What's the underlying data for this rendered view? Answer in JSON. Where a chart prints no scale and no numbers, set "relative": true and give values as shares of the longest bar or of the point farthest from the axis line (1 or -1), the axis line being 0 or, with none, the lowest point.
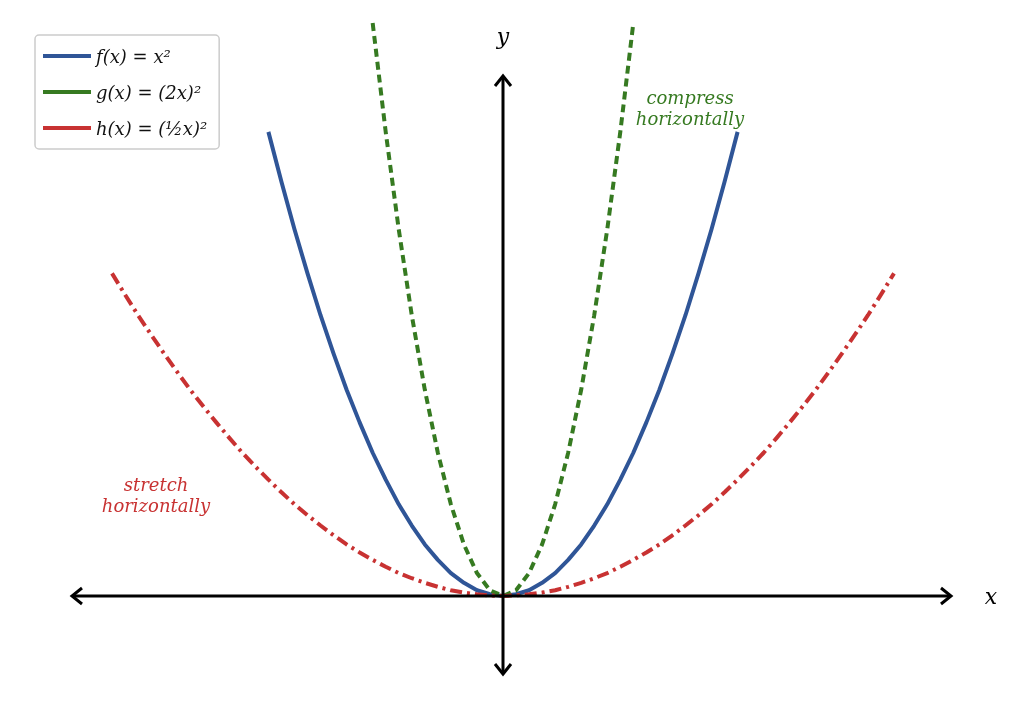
{
  "chart_data": {
    "type": "line",
    "relative": true,
    "xlabel": "x",
    "ylabel": "y",
    "legend": "top left",
    "grid": false,
    "marker": "none",
    "categories": [
      null,
      null,
      null,
      null,
      null,
      null,
      null,
      null,
      null,
      null,
      null,
      null,
      null,
      null,
      null,
      null,
      null,
      null,
      null,
      null,
      null,
      null,
      null,
      null,
      null,
      null,
      null,
      null,
      null,
      null,
      null,
      null,
      null,
      null,
      null,
      null,
      null,
      null,
      null,
      null,
      null,
      null,
      null,
      null,
      null,
      null,
      null,
      null,
      null,
      null,
      null,
      null,
      null,
      null,
      null,
      null,
      null,
      null,
      null,
      null,
      null
    ],
    "series": [
      {
        "name": "f(x) = x²",
        "color": "#2f5597",
        "line_style": "solid",
        "values": [
          null,
          null,
          null,
          null,
          null,
          null,
          null,
          null,
          null,
          null,
          null,
          null,
          0.81,
          0.723,
          0.64,
          0.563,
          0.49,
          0.423,
          0.36,
          0.303,
          0.25,
          0.203,
          0.16,
          0.123,
          0.09,
          0.063,
          0.04,
          0.023,
          0.01,
          0.003,
          0,
          0.003,
          0.01,
          0.023,
          0.04,
          0.063,
          0.09,
          0.123,
          0.16,
          0.203,
          0.25,
          0.303,
          0.36,
          0.423,
          0.49,
          0.563,
          0.64,
          0.723,
          0.81,
          null,
          null,
          null,
          null,
          null,
          null,
          null,
          null,
          null,
          null,
          null,
          null
        ]
      },
      {
        "name": "g(x) = (2x)²",
        "color": "#367a21",
        "line_style": "dashed",
        "values": [
          null,
          null,
          null,
          null,
          null,
          null,
          null,
          null,
          null,
          null,
          null,
          null,
          null,
          null,
          null,
          null,
          null,
          null,
          null,
          null,
          1,
          0.81,
          0.64,
          0.49,
          0.36,
          0.25,
          0.16,
          0.09,
          0.04,
          0.01,
          0,
          0.01,
          0.04,
          0.09,
          0.16,
          0.25,
          0.36,
          0.49,
          0.64,
          0.81,
          1,
          null,
          null,
          null,
          null,
          null,
          null,
          null,
          null,
          null,
          null,
          null,
          null,
          null,
          null,
          null,
          null,
          null,
          null,
          null,
          null
        ]
      },
      {
        "name": "h(x) = (½x)²",
        "color": "#c83232",
        "line_style": "dashdot",
        "values": [
          0.563,
          0.526,
          0.49,
          0.456,
          0.423,
          0.391,
          0.36,
          0.331,
          0.303,
          0.276,
          0.25,
          0.226,
          0.203,
          0.181,
          0.16,
          0.141,
          0.123,
          0.106,
          0.09,
          0.076,
          0.063,
          0.051,
          0.04,
          0.031,
          0.023,
          0.016,
          0.01,
          0.006,
          0.003,
          0.001,
          0,
          0.001,
          0.003,
          0.006,
          0.01,
          0.016,
          0.023,
          0.031,
          0.04,
          0.051,
          0.063,
          0.076,
          0.09,
          0.106,
          0.123,
          0.141,
          0.16,
          0.181,
          0.203,
          0.226,
          0.25,
          0.276,
          0.303,
          0.331,
          0.36,
          0.391,
          0.423,
          0.456,
          0.49,
          0.526,
          0.563
        ]
      }
    ],
    "annotations": [
      "compress\nhorizontally",
      "stretch\nhorizontally"
    ]
  }
}
